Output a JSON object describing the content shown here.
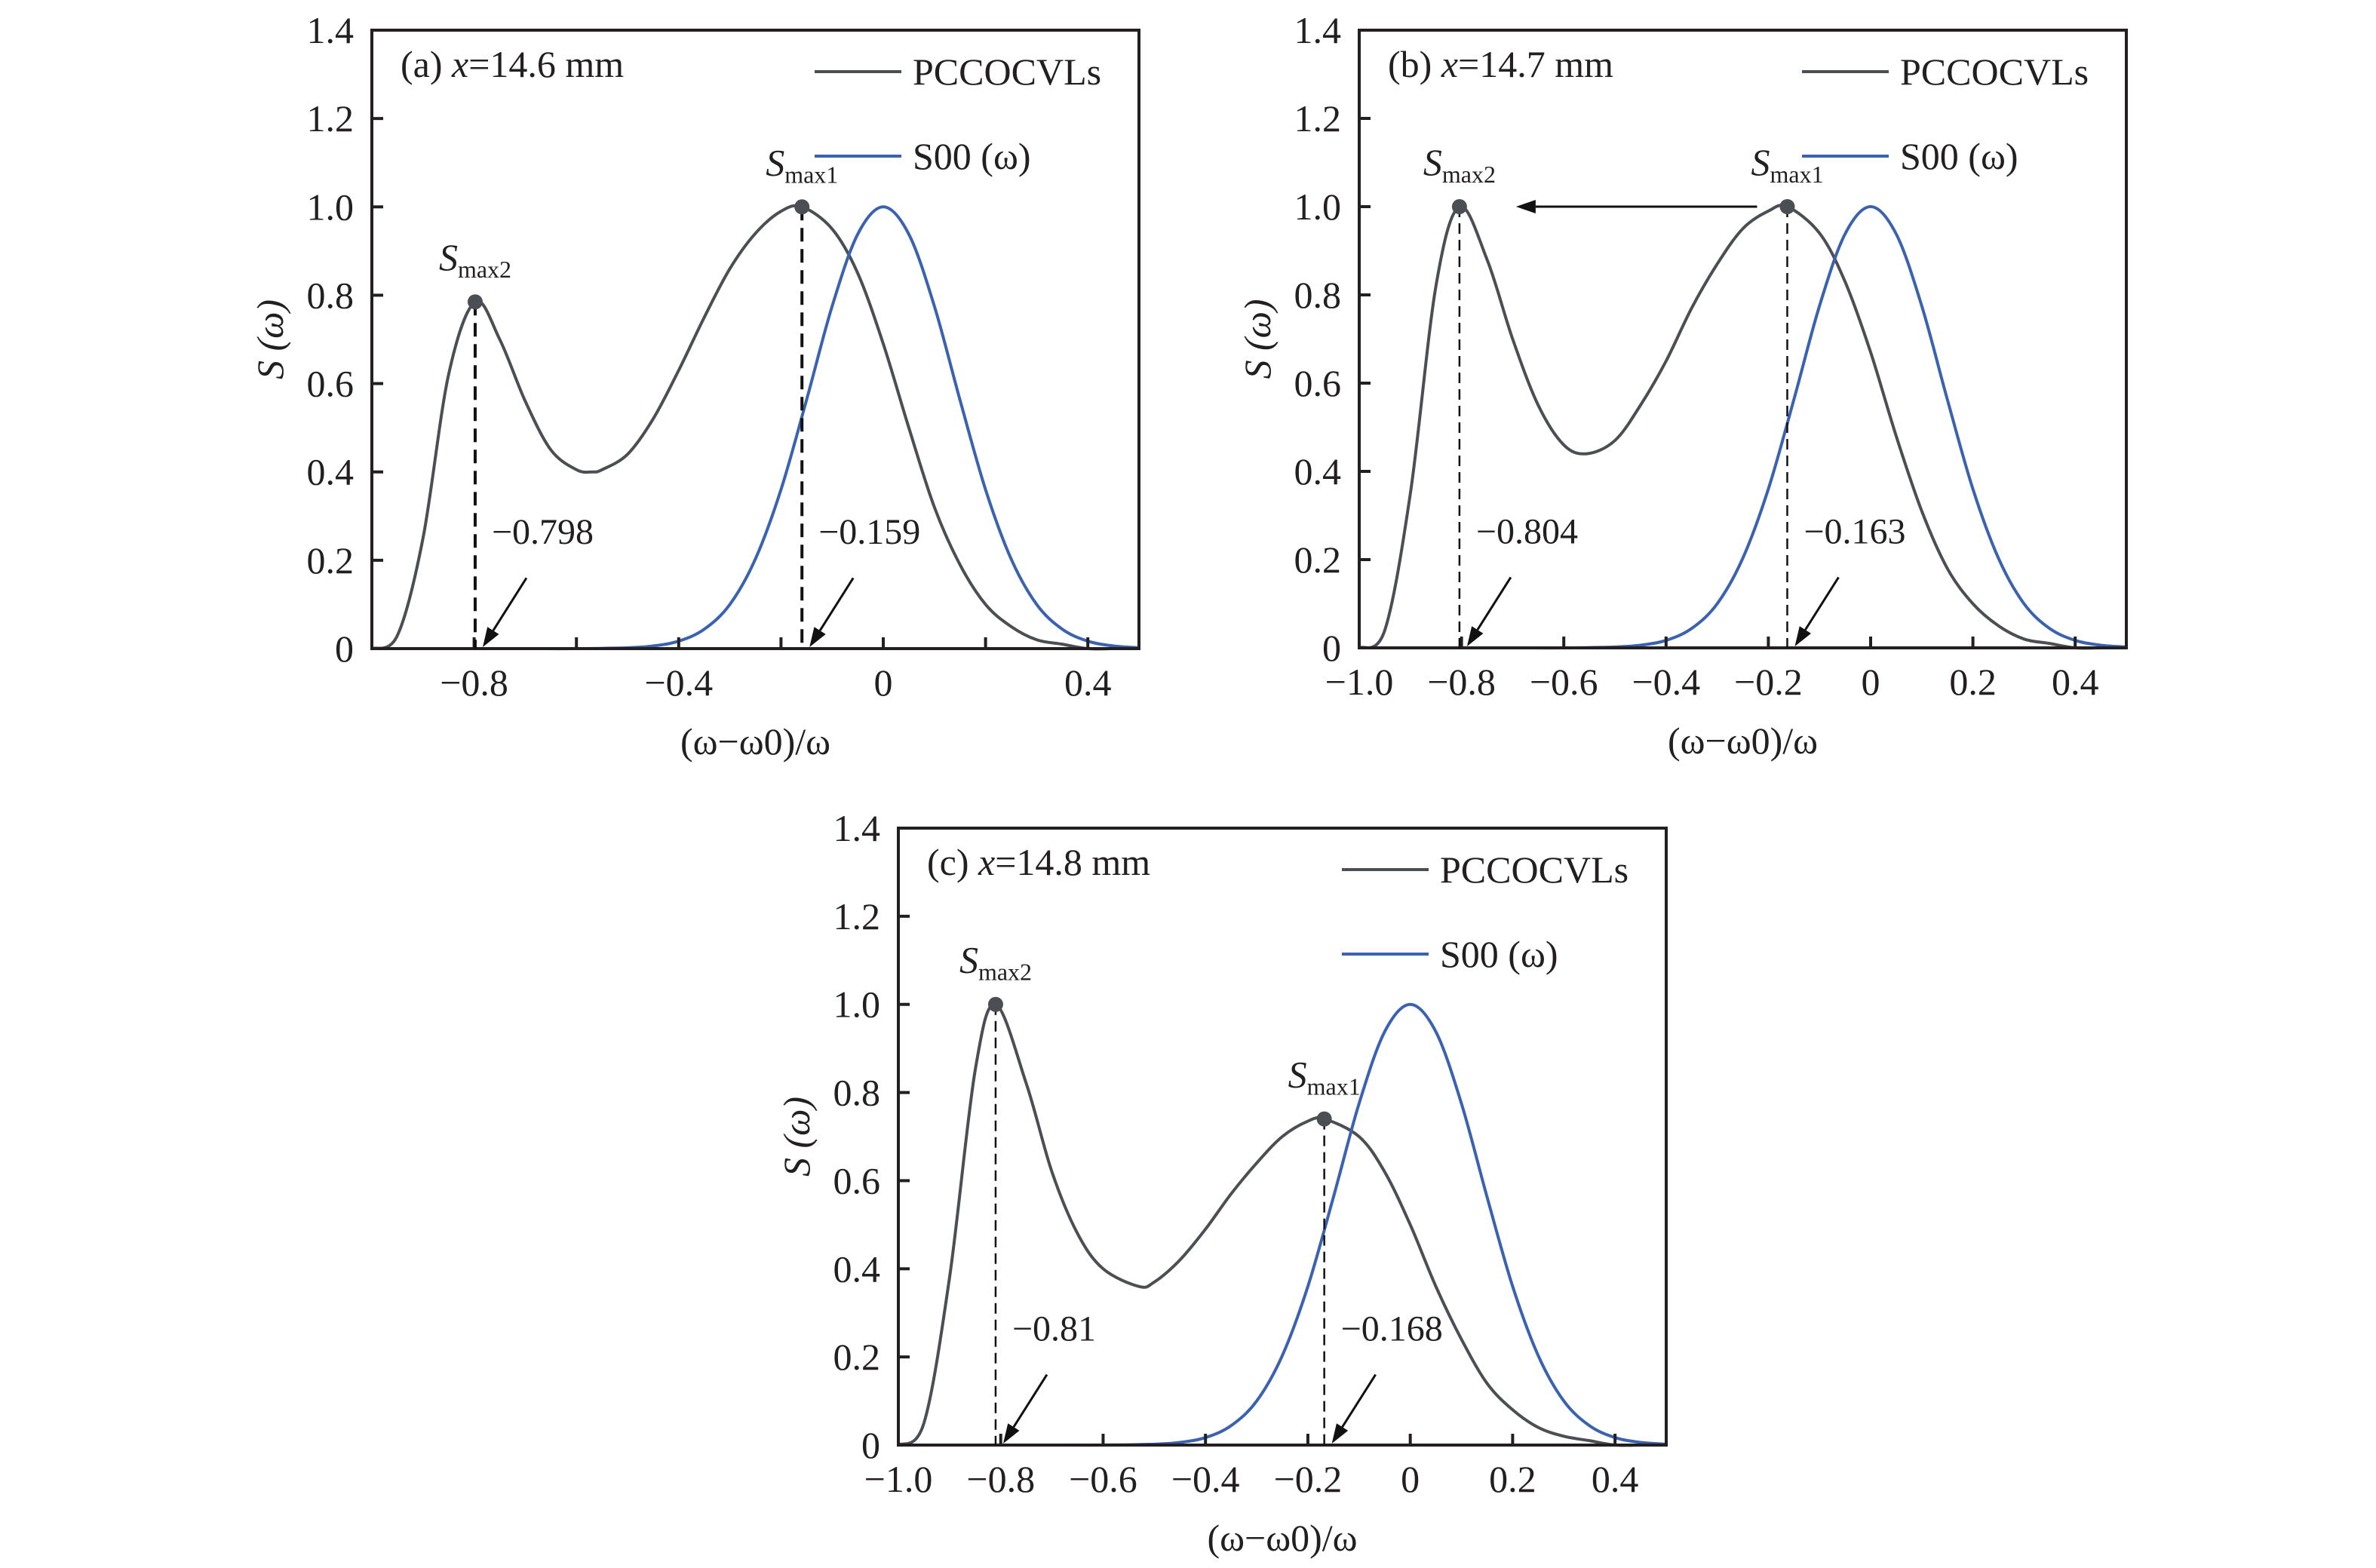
{
  "chart_data": [
    {
      "type": "line",
      "panel": "a",
      "title": "(a) x=14.6 mm",
      "title_prefix": "(a) ",
      "title_var": "x",
      "title_value": "=14.6 mm",
      "xlabel": "(ω−ω0)/ω",
      "ylabel": "S (ω)",
      "xlim": [
        -1.0,
        0.5
      ],
      "ylim": [
        0,
        1.4
      ],
      "xticks": [
        -0.8,
        -0.4,
        0,
        0.4
      ],
      "xtick_labels": [
        "−0.8",
        "−0.4",
        "0",
        "0.4"
      ],
      "xticks_minor": [
        -0.6,
        -0.2,
        0.2
      ],
      "yticks": [
        0,
        0.2,
        0.4,
        0.6,
        0.8,
        1.0,
        1.2,
        1.4
      ],
      "ytick_labels": [
        "0",
        "0.2",
        "0.4",
        "0.6",
        "0.8",
        "1.0",
        "1.2",
        "1.4"
      ],
      "grid": false,
      "legend_position": "top-right",
      "series": [
        {
          "name": "PCCOCVLs",
          "color": "#4b4e53",
          "x": [
            -1.0,
            -0.95,
            -0.9,
            -0.85,
            -0.798,
            -0.75,
            -0.7,
            -0.65,
            -0.6,
            -0.57,
            -0.55,
            -0.5,
            -0.45,
            -0.4,
            -0.35,
            -0.3,
            -0.25,
            -0.2,
            -0.159,
            -0.1,
            -0.05,
            0,
            0.05,
            0.1,
            0.15,
            0.2,
            0.25,
            0.3,
            0.35,
            0.4,
            0.45,
            0.5
          ],
          "y": [
            0,
            0.03,
            0.25,
            0.62,
            0.785,
            0.7,
            0.56,
            0.45,
            0.405,
            0.4,
            0.405,
            0.44,
            0.52,
            0.63,
            0.75,
            0.86,
            0.94,
            0.99,
            1.0,
            0.95,
            0.85,
            0.69,
            0.5,
            0.32,
            0.19,
            0.1,
            0.05,
            0.02,
            0.01,
            0,
            0,
            0
          ]
        },
        {
          "name": "S00 (ω)",
          "color": "#3a62ae",
          "x": [
            -1.0,
            -0.9,
            -0.8,
            -0.7,
            -0.6,
            -0.5,
            -0.45,
            -0.4,
            -0.35,
            -0.3,
            -0.25,
            -0.2,
            -0.15,
            -0.1,
            -0.05,
            0,
            0.05,
            0.1,
            0.15,
            0.2,
            0.25,
            0.3,
            0.35,
            0.4,
            0.45,
            0.5
          ],
          "y": [
            0,
            0,
            0,
            0,
            0,
            0.002,
            0.006,
            0.017,
            0.044,
            0.1,
            0.203,
            0.36,
            0.563,
            0.775,
            0.938,
            1.0,
            0.938,
            0.775,
            0.563,
            0.36,
            0.203,
            0.1,
            0.044,
            0.017,
            0.006,
            0.002
          ]
        }
      ],
      "peaks": [
        {
          "name": "Smax2",
          "label_main": "S",
          "label_sub": "max2",
          "x": -0.798,
          "y": 0.785,
          "annotation": "−0.798"
        },
        {
          "name": "Smax1",
          "label_main": "S",
          "label_sub": "max1",
          "x": -0.159,
          "y": 1.0,
          "annotation": "−0.159"
        }
      ],
      "shift_arrow": false,
      "dash_style": "thick"
    },
    {
      "type": "line",
      "panel": "b",
      "title": "(b) x=14.7 mm",
      "title_prefix": "(b) ",
      "title_var": "x",
      "title_value": "=14.7 mm",
      "xlabel": "(ω−ω0)/ω",
      "ylabel": "S (ω)",
      "xlim": [
        -1.0,
        0.5
      ],
      "ylim": [
        0,
        1.4
      ],
      "xticks": [
        -1.0,
        -0.8,
        -0.6,
        -0.4,
        -0.2,
        0,
        0.2,
        0.4
      ],
      "xtick_labels": [
        "−1.0",
        "−0.8",
        "−0.6",
        "−0.4",
        "−0.2",
        "0",
        "0.2",
        "0.4"
      ],
      "xticks_minor": [],
      "yticks": [
        0,
        0.2,
        0.4,
        0.6,
        0.8,
        1.0,
        1.2,
        1.4
      ],
      "ytick_labels": [
        "0",
        "0.2",
        "0.4",
        "0.6",
        "0.8",
        "1.0",
        "1.2",
        "1.4"
      ],
      "grid": false,
      "legend_position": "top-right",
      "series": [
        {
          "name": "PCCOCVLs",
          "color": "#4b4e53",
          "x": [
            -1.0,
            -0.95,
            -0.9,
            -0.85,
            -0.804,
            -0.75,
            -0.7,
            -0.65,
            -0.6,
            -0.555,
            -0.5,
            -0.45,
            -0.4,
            -0.35,
            -0.3,
            -0.25,
            -0.2,
            -0.163,
            -0.1,
            -0.05,
            0,
            0.05,
            0.1,
            0.15,
            0.2,
            0.25,
            0.3,
            0.35,
            0.4,
            0.45,
            0.5
          ],
          "y": [
            0,
            0.04,
            0.35,
            0.82,
            1.0,
            0.88,
            0.7,
            0.55,
            0.46,
            0.44,
            0.47,
            0.55,
            0.65,
            0.77,
            0.87,
            0.95,
            0.99,
            1.0,
            0.94,
            0.83,
            0.67,
            0.48,
            0.31,
            0.18,
            0.1,
            0.05,
            0.02,
            0.01,
            0,
            0,
            0
          ]
        },
        {
          "name": "S00 (ω)",
          "color": "#3a62ae",
          "x": [
            -1.0,
            -0.9,
            -0.8,
            -0.7,
            -0.6,
            -0.5,
            -0.45,
            -0.4,
            -0.35,
            -0.3,
            -0.25,
            -0.2,
            -0.15,
            -0.1,
            -0.05,
            0,
            0.05,
            0.1,
            0.15,
            0.2,
            0.25,
            0.3,
            0.35,
            0.4,
            0.45,
            0.5
          ],
          "y": [
            0,
            0,
            0,
            0,
            0,
            0.002,
            0.006,
            0.017,
            0.044,
            0.1,
            0.203,
            0.36,
            0.563,
            0.775,
            0.938,
            1.0,
            0.938,
            0.775,
            0.563,
            0.36,
            0.203,
            0.1,
            0.044,
            0.017,
            0.006,
            0.002
          ]
        }
      ],
      "peaks": [
        {
          "name": "Smax2",
          "label_main": "S",
          "label_sub": "max2",
          "x": -0.804,
          "y": 1.0,
          "annotation": "−0.804"
        },
        {
          "name": "Smax1",
          "label_main": "S",
          "label_sub": "max1",
          "x": -0.163,
          "y": 1.0,
          "annotation": "−0.163"
        }
      ],
      "shift_arrow": true,
      "dash_style": "thin"
    },
    {
      "type": "line",
      "panel": "c",
      "title": "(c) x=14.8 mm",
      "title_prefix": "(c) ",
      "title_var": "x",
      "title_value": "=14.8 mm",
      "xlabel": "(ω−ω0)/ω",
      "ylabel": "S (ω)",
      "xlim": [
        -1.0,
        0.5
      ],
      "ylim": [
        0,
        1.4
      ],
      "xticks": [
        -1.0,
        -0.8,
        -0.6,
        -0.4,
        -0.2,
        0,
        0.2,
        0.4
      ],
      "xtick_labels": [
        "−1.0",
        "−0.8",
        "−0.6",
        "−0.4",
        "−0.2",
        "0",
        "0.2",
        "0.4"
      ],
      "xticks_minor": [],
      "yticks": [
        0,
        0.2,
        0.4,
        0.6,
        0.8,
        1.0,
        1.2,
        1.4
      ],
      "ytick_labels": [
        "0",
        "0.2",
        "0.4",
        "0.6",
        "0.8",
        "1.0",
        "1.2",
        "1.4"
      ],
      "grid": false,
      "legend_position": "top-right",
      "series": [
        {
          "name": "PCCOCVLs",
          "color": "#4b4e53",
          "x": [
            -1.0,
            -0.95,
            -0.9,
            -0.85,
            -0.81,
            -0.75,
            -0.7,
            -0.65,
            -0.6,
            -0.53,
            -0.5,
            -0.45,
            -0.4,
            -0.35,
            -0.3,
            -0.25,
            -0.2,
            -0.168,
            -0.1,
            -0.05,
            0,
            0.05,
            0.1,
            0.15,
            0.2,
            0.25,
            0.3,
            0.35,
            0.4,
            0.45,
            0.5
          ],
          "y": [
            0,
            0.05,
            0.38,
            0.85,
            1.0,
            0.82,
            0.62,
            0.48,
            0.4,
            0.36,
            0.37,
            0.42,
            0.49,
            0.57,
            0.64,
            0.7,
            0.735,
            0.74,
            0.7,
            0.62,
            0.5,
            0.36,
            0.24,
            0.14,
            0.08,
            0.04,
            0.02,
            0.01,
            0,
            0,
            0
          ]
        },
        {
          "name": "S00 (ω)",
          "color": "#3a62ae",
          "x": [
            -1.0,
            -0.9,
            -0.8,
            -0.7,
            -0.6,
            -0.5,
            -0.45,
            -0.4,
            -0.35,
            -0.3,
            -0.25,
            -0.2,
            -0.15,
            -0.1,
            -0.05,
            0,
            0.05,
            0.1,
            0.15,
            0.2,
            0.25,
            0.3,
            0.35,
            0.4,
            0.45,
            0.5
          ],
          "y": [
            0,
            0,
            0,
            0,
            0,
            0.002,
            0.006,
            0.017,
            0.044,
            0.1,
            0.203,
            0.36,
            0.563,
            0.775,
            0.938,
            1.0,
            0.938,
            0.775,
            0.563,
            0.36,
            0.203,
            0.1,
            0.044,
            0.017,
            0.006,
            0.002
          ]
        }
      ],
      "peaks": [
        {
          "name": "Smax2",
          "label_main": "S",
          "label_sub": "max2",
          "x": -0.81,
          "y": 1.0,
          "annotation": "−0.81"
        },
        {
          "name": "Smax1",
          "label_main": "S",
          "label_sub": "max1",
          "x": -0.168,
          "y": 0.74,
          "annotation": "−0.168"
        }
      ],
      "shift_arrow": false,
      "dash_style": "thin"
    }
  ]
}
